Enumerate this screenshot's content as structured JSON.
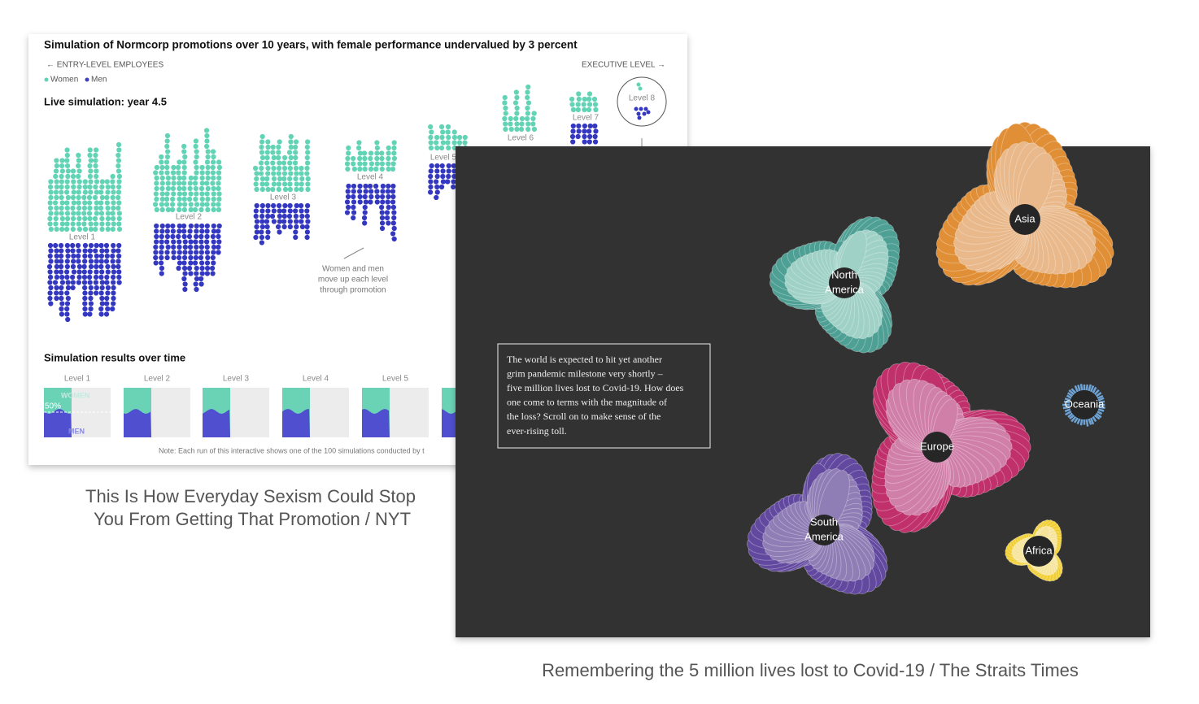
{
  "left": {
    "title": "Simulation of Normcorp promotions over 10 years, with female performance undervalued by 3 percent",
    "entry_label": "← ENTRY-LEVEL EMPLOYEES",
    "exec_label": "EXECUTIVE LEVEL →",
    "legend": [
      "Women",
      "Men"
    ],
    "live_title": "Live simulation: year 4.5",
    "levels": [
      "Level 1",
      "Level 2",
      "Level 3",
      "Level 4",
      "Level 5",
      "Level 6",
      "Level 7",
      "Level 8"
    ],
    "annotation": [
      "Women and men",
      "move up each level",
      "through promotion"
    ],
    "results_title": "Simulation results over time",
    "results_levels": [
      "Level 1",
      "Level 2",
      "Level 3",
      "Level 4",
      "Level 5"
    ],
    "women_label": "WOMEN",
    "half_label": "50%",
    "men_label": "MEN",
    "note": "Note: Each run of this interactive shows one of the 100 simulations conducted by t",
    "caption": [
      "This Is How Everyday Sexism Could Stop",
      "You From Getting That Promotion / NYT"
    ]
  },
  "right": {
    "paragraph": [
      "The world is expected to hit yet another",
      "grim pandemic milestone very shortly –",
      "five million lives lost to Covid-19. How does",
      "one come to terms with the magnitude of",
      "the loss? Scroll on to make sense of the",
      "ever-rising toll."
    ],
    "regions": [
      [
        "North",
        "America"
      ],
      [
        "Asia"
      ],
      [
        "Europe"
      ],
      [
        "Oceania"
      ],
      [
        "South",
        "America"
      ],
      [
        "Africa"
      ]
    ],
    "caption": "Remembering the 5 million lives lost to Covid-19 / The Straits Times"
  }
}
